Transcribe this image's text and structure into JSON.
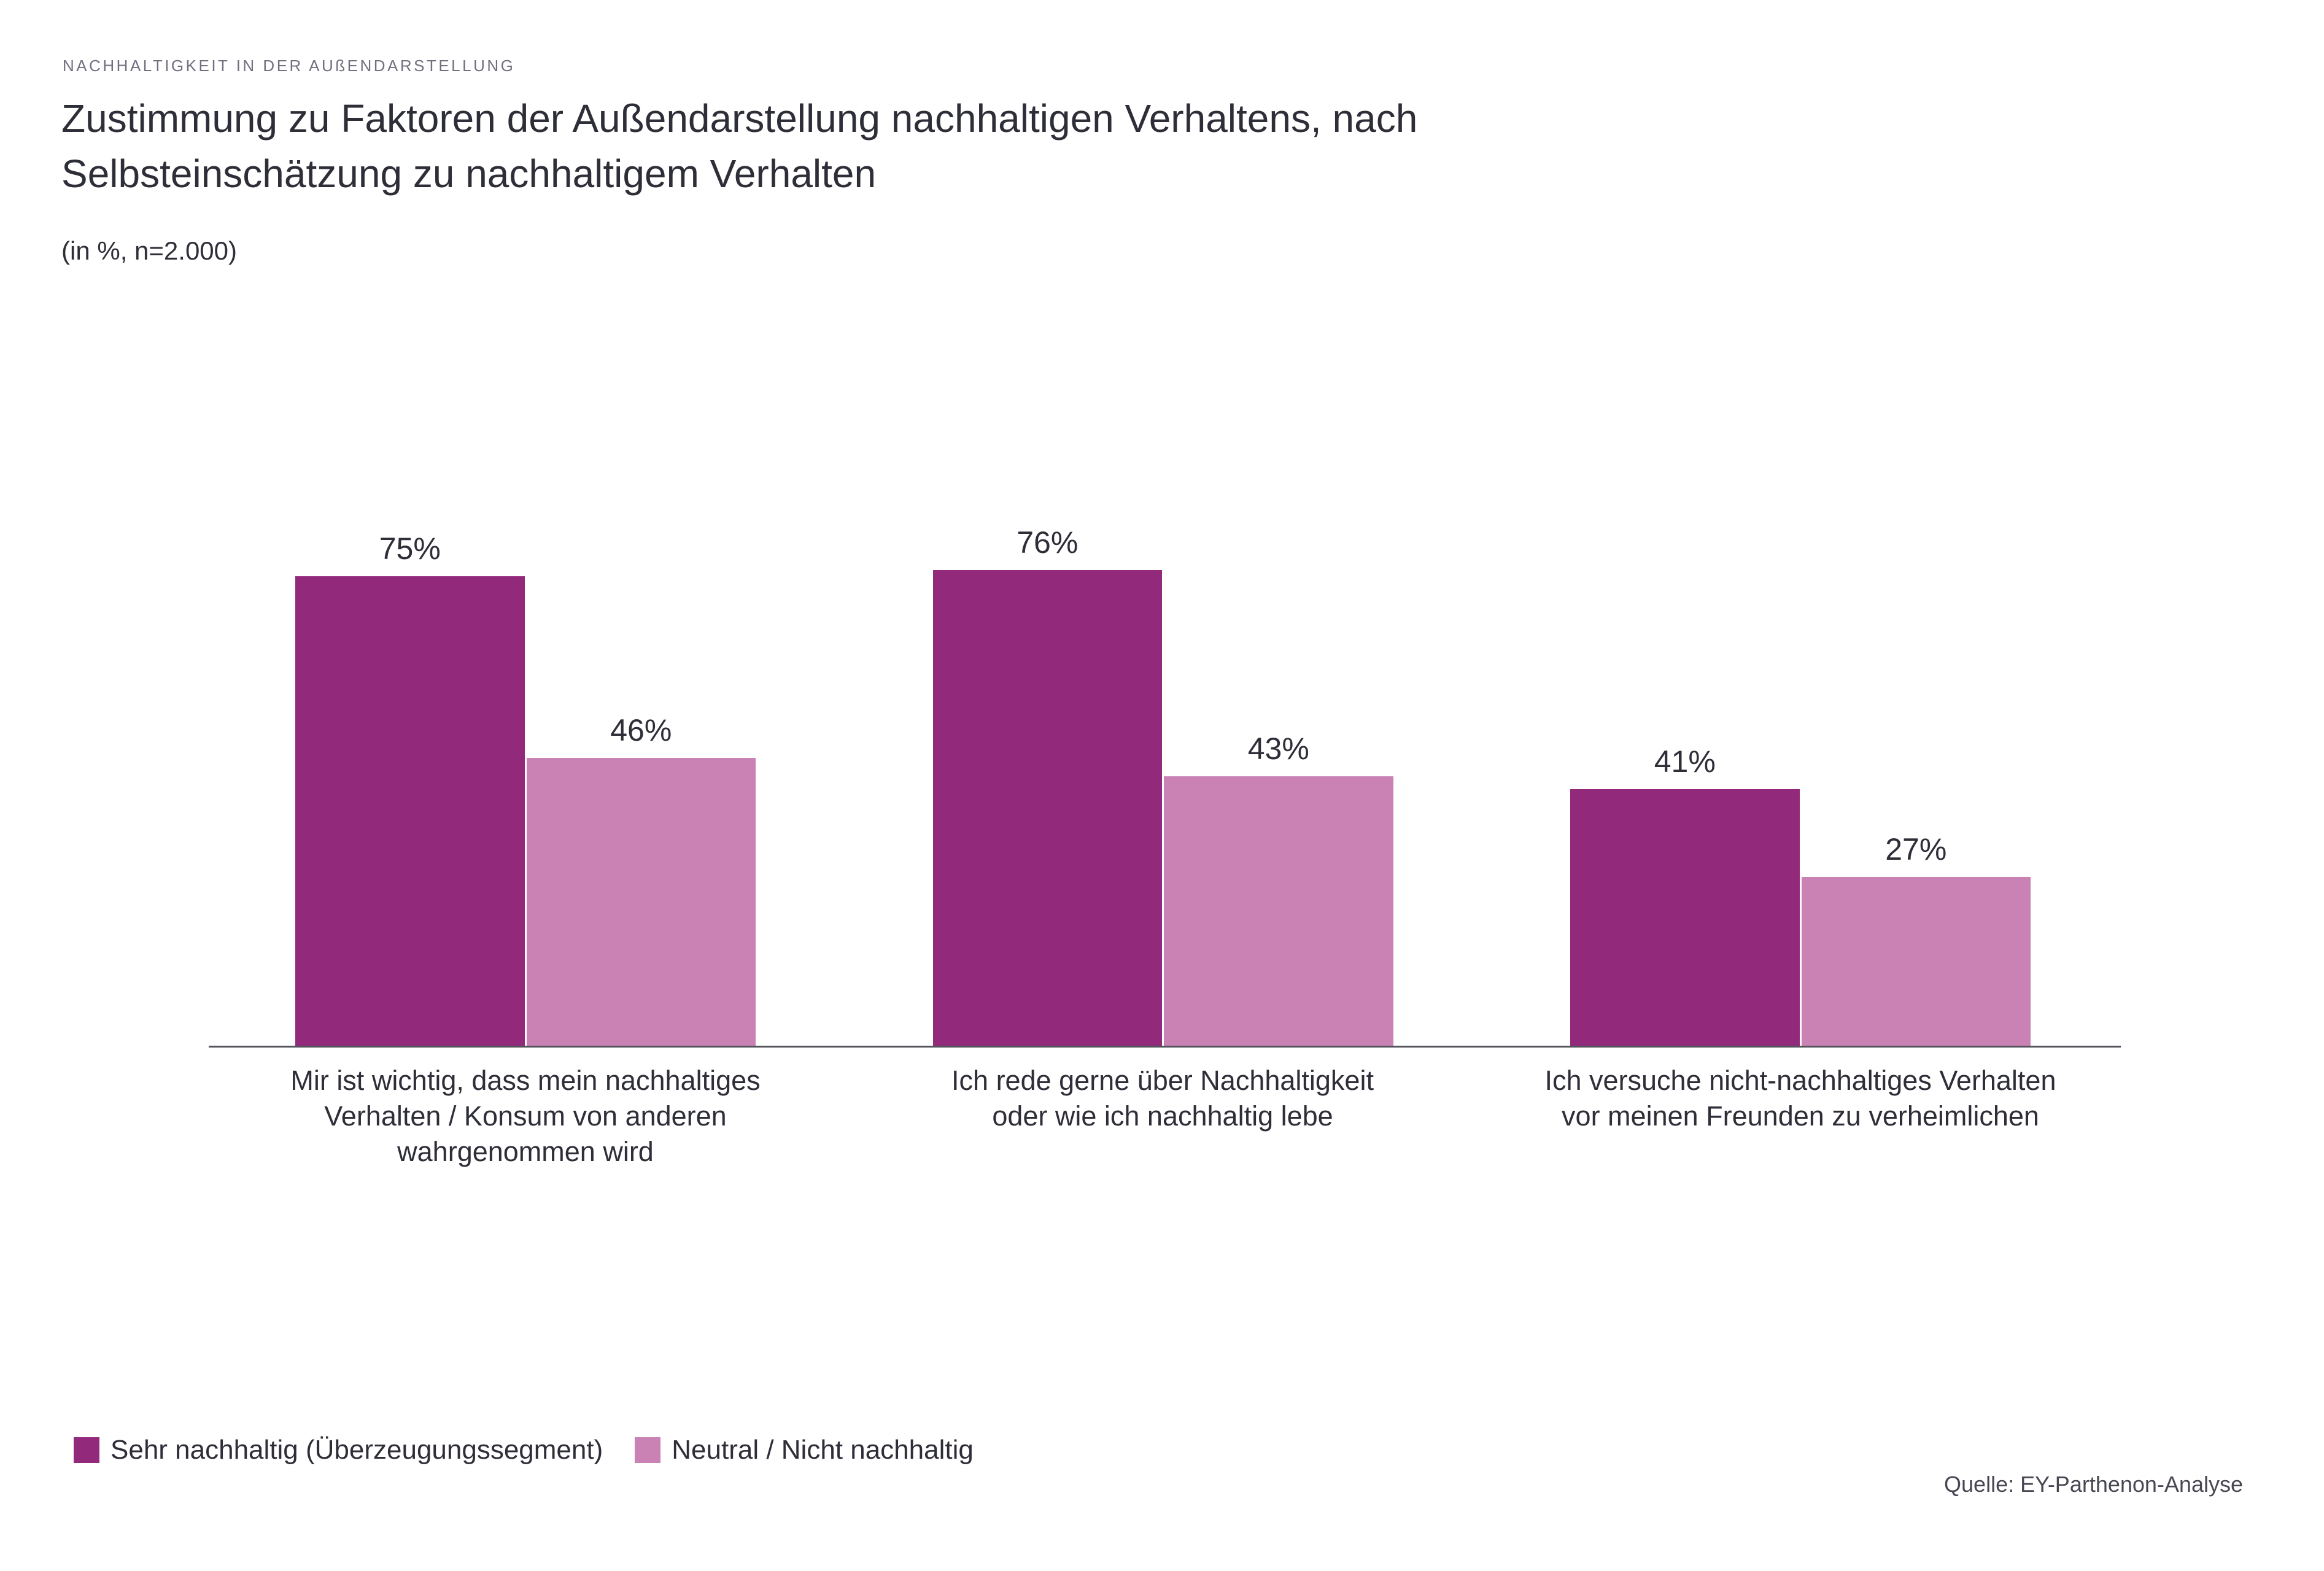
{
  "page": {
    "eyebrow": "NACHHALTIGKEIT IN DER AUßENDARSTELLUNG"
  },
  "chart_data": {
    "type": "bar",
    "title": "Zustimmung zu Faktoren der Außendarstellung nachhaltigen Verhaltens, nach\nSelbsteinschätzung zu nachhaltigem Verhalten",
    "subtitle": "(in %, n=2.000)",
    "categories": [
      "Mir ist wichtig, dass mein nachhaltiges\nVerhalten / Konsum von anderen\nwahrgenommen wird",
      "Ich rede gerne über Nachhaltigkeit\noder wie ich nachhaltig lebe",
      "Ich versuche nicht-nachhaltiges Verhalten\nvor meinen Freunden zu verheimlichen"
    ],
    "series": [
      {
        "name": "Sehr nachhaltig (Überzeugungssegment)",
        "color": "#93297B",
        "values": [
          75,
          76,
          41
        ]
      },
      {
        "name": "Neutral / Nicht nachhaltig",
        "color": "#C982B3",
        "values": [
          46,
          43,
          27
        ]
      }
    ],
    "value_suffix": "%",
    "ylim": [
      0,
      100
    ],
    "grid": false,
    "value_labels": true,
    "legend_position": "bottom-left",
    "source": "Quelle: EY-Parthenon-Analyse"
  },
  "colors": {
    "series_primary": "#93297B",
    "series_secondary": "#C982B3",
    "text_dark": "#2E2E38",
    "eyebrow_text": "#70707F",
    "axis_line": "#54545C",
    "source_text": "#474753",
    "background": "#FFFFFF"
  }
}
